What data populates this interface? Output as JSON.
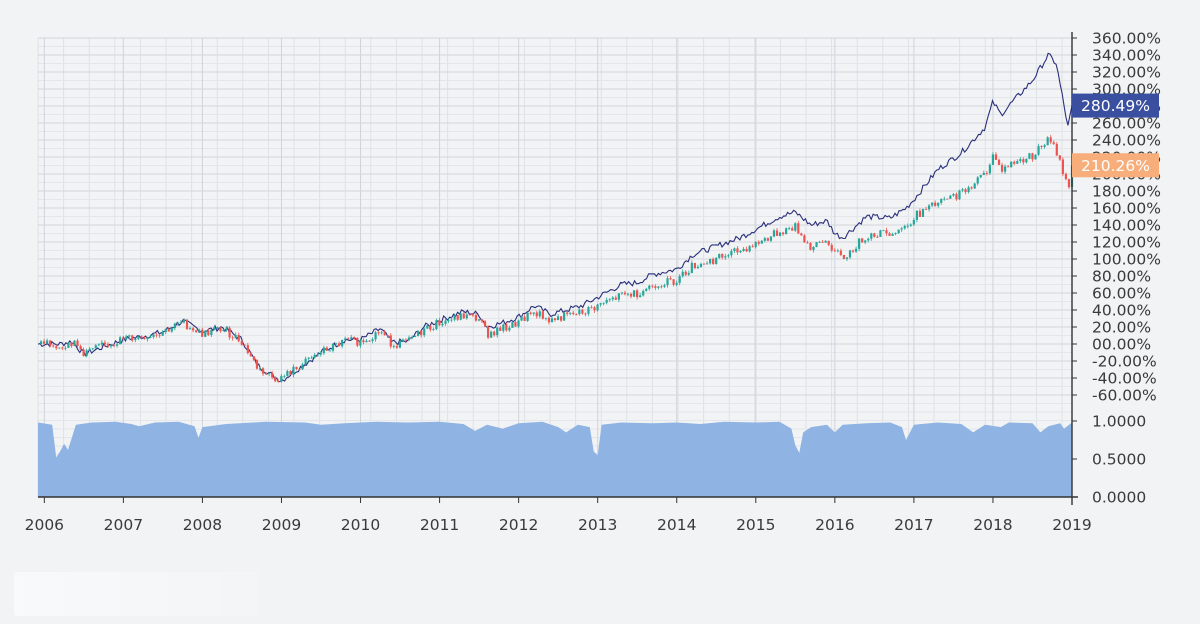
{
  "chart_data": [
    {
      "type": "line",
      "title": "",
      "xlabel": "",
      "ylabel": "",
      "x_ticks": [
        "2006",
        "2007",
        "2008",
        "2009",
        "2010",
        "2011",
        "2012",
        "2013",
        "2014",
        "2015",
        "2016",
        "2017",
        "2018",
        "2019"
      ],
      "x_range": [
        2005.92,
        2019.0
      ],
      "y_ticks": [
        "360.00%",
        "340.00%",
        "320.00%",
        "300.00%",
        "280.00%",
        "260.00%",
        "240.00%",
        "220.00%",
        "200.00%",
        "180.00%",
        "160.00%",
        "140.00%",
        "120.00%",
        "100.00%",
        "80.00%",
        "60.00%",
        "40.00%",
        "20.00%",
        "00.00%",
        "-20.00%",
        "-40.00%",
        "-60.00%"
      ],
      "ylim": [
        -70,
        365
      ],
      "grid": true,
      "series": [
        {
          "style": "line",
          "color": "#2a2f7a",
          "last_value_label": "280.49%",
          "label_color": "#3a4fa0",
          "points": [
            [
              2005.92,
              0
            ],
            [
              2006.2,
              0
            ],
            [
              2006.35,
              3
            ],
            [
              2006.5,
              -12
            ],
            [
              2006.7,
              -5
            ],
            [
              2007.0,
              5
            ],
            [
              2007.3,
              10
            ],
            [
              2007.5,
              14
            ],
            [
              2007.75,
              27
            ],
            [
              2008.0,
              15
            ],
            [
              2008.25,
              20
            ],
            [
              2008.5,
              5
            ],
            [
              2008.7,
              -25
            ],
            [
              2008.9,
              -38
            ],
            [
              2009.0,
              -43
            ],
            [
              2009.2,
              -30
            ],
            [
              2009.5,
              -10
            ],
            [
              2009.8,
              5
            ],
            [
              2010.0,
              5
            ],
            [
              2010.25,
              18
            ],
            [
              2010.4,
              2
            ],
            [
              2010.6,
              3
            ],
            [
              2010.8,
              20
            ],
            [
              2011.0,
              28
            ],
            [
              2011.3,
              38
            ],
            [
              2011.5,
              35
            ],
            [
              2011.6,
              20
            ],
            [
              2011.8,
              25
            ],
            [
              2012.0,
              32
            ],
            [
              2012.2,
              45
            ],
            [
              2012.4,
              35
            ],
            [
              2012.6,
              40
            ],
            [
              2012.8,
              45
            ],
            [
              2013.0,
              55
            ],
            [
              2013.3,
              70
            ],
            [
              2013.5,
              72
            ],
            [
              2013.7,
              82
            ],
            [
              2014.0,
              88
            ],
            [
              2014.2,
              105
            ],
            [
              2014.5,
              115
            ],
            [
              2014.8,
              125
            ],
            [
              2015.0,
              135
            ],
            [
              2015.3,
              150
            ],
            [
              2015.5,
              155
            ],
            [
              2015.7,
              140
            ],
            [
              2015.9,
              145
            ],
            [
              2016.0,
              130
            ],
            [
              2016.1,
              125
            ],
            [
              2016.4,
              150
            ],
            [
              2016.7,
              148
            ],
            [
              2016.9,
              160
            ],
            [
              2017.0,
              170
            ],
            [
              2017.3,
              205
            ],
            [
              2017.6,
              225
            ],
            [
              2017.9,
              255
            ],
            [
              2018.0,
              285
            ],
            [
              2018.1,
              270
            ],
            [
              2018.3,
              290
            ],
            [
              2018.5,
              310
            ],
            [
              2018.7,
              340
            ],
            [
              2018.8,
              330
            ],
            [
              2018.88,
              290
            ],
            [
              2018.95,
              255
            ],
            [
              2019.0,
              280.49
            ]
          ]
        },
        {
          "style": "candlestick",
          "up_color": "#26a69a",
          "down_color": "#ef5350",
          "last_value_label": "210.26%",
          "label_color": "#f7ae7a",
          "points": [
            [
              2005.92,
              0
            ],
            [
              2006.2,
              -2
            ],
            [
              2006.35,
              2
            ],
            [
              2006.5,
              -10
            ],
            [
              2006.7,
              -4
            ],
            [
              2007.0,
              6
            ],
            [
              2007.3,
              10
            ],
            [
              2007.5,
              15
            ],
            [
              2007.75,
              25
            ],
            [
              2008.0,
              12
            ],
            [
              2008.25,
              18
            ],
            [
              2008.5,
              3
            ],
            [
              2008.7,
              -28
            ],
            [
              2008.9,
              -40
            ],
            [
              2009.0,
              -40
            ],
            [
              2009.2,
              -28
            ],
            [
              2009.5,
              -10
            ],
            [
              2009.8,
              3
            ],
            [
              2010.0,
              3
            ],
            [
              2010.25,
              15
            ],
            [
              2010.4,
              0
            ],
            [
              2010.6,
              2
            ],
            [
              2010.8,
              17
            ],
            [
              2011.0,
              25
            ],
            [
              2011.3,
              33
            ],
            [
              2011.5,
              30
            ],
            [
              2011.6,
              12
            ],
            [
              2011.8,
              18
            ],
            [
              2012.0,
              25
            ],
            [
              2012.2,
              38
            ],
            [
              2012.4,
              28
            ],
            [
              2012.6,
              33
            ],
            [
              2012.8,
              37
            ],
            [
              2013.0,
              45
            ],
            [
              2013.3,
              57
            ],
            [
              2013.5,
              60
            ],
            [
              2013.7,
              70
            ],
            [
              2014.0,
              75
            ],
            [
              2014.2,
              92
            ],
            [
              2014.5,
              100
            ],
            [
              2014.8,
              110
            ],
            [
              2015.0,
              118
            ],
            [
              2015.3,
              132
            ],
            [
              2015.5,
              138
            ],
            [
              2015.7,
              112
            ],
            [
              2015.9,
              122
            ],
            [
              2016.0,
              108
            ],
            [
              2016.1,
              100
            ],
            [
              2016.4,
              128
            ],
            [
              2016.7,
              132
            ],
            [
              2016.9,
              138
            ],
            [
              2017.0,
              150
            ],
            [
              2017.3,
              165
            ],
            [
              2017.6,
              178
            ],
            [
              2017.9,
              200
            ],
            [
              2018.0,
              222
            ],
            [
              2018.1,
              205
            ],
            [
              2018.3,
              215
            ],
            [
              2018.5,
              222
            ],
            [
              2018.7,
              240
            ],
            [
              2018.8,
              228
            ],
            [
              2018.88,
              205
            ],
            [
              2018.95,
              182
            ],
            [
              2019.0,
              210.26
            ]
          ]
        }
      ]
    },
    {
      "type": "area",
      "title": "",
      "xlabel": "",
      "ylabel": "",
      "y_ticks": [
        "1.0000",
        "0.5000",
        "0.0000"
      ],
      "ylim": [
        0,
        1.05
      ],
      "color": "#8fb3e3",
      "points": [
        [
          2005.92,
          0.98
        ],
        [
          2006.1,
          0.95
        ],
        [
          2006.15,
          0.52
        ],
        [
          2006.2,
          0.6
        ],
        [
          2006.25,
          0.7
        ],
        [
          2006.3,
          0.62
        ],
        [
          2006.4,
          0.95
        ],
        [
          2006.6,
          0.98
        ],
        [
          2006.9,
          0.99
        ],
        [
          2007.1,
          0.96
        ],
        [
          2007.2,
          0.93
        ],
        [
          2007.4,
          0.98
        ],
        [
          2007.7,
          0.99
        ],
        [
          2007.9,
          0.93
        ],
        [
          2007.95,
          0.78
        ],
        [
          2008.0,
          0.92
        ],
        [
          2008.3,
          0.96
        ],
        [
          2008.8,
          0.99
        ],
        [
          2009.3,
          0.98
        ],
        [
          2009.5,
          0.95
        ],
        [
          2009.8,
          0.97
        ],
        [
          2010.2,
          0.99
        ],
        [
          2010.6,
          0.98
        ],
        [
          2011.0,
          0.99
        ],
        [
          2011.3,
          0.96
        ],
        [
          2011.45,
          0.87
        ],
        [
          2011.6,
          0.95
        ],
        [
          2011.8,
          0.9
        ],
        [
          2012.0,
          0.97
        ],
        [
          2012.3,
          0.99
        ],
        [
          2012.5,
          0.92
        ],
        [
          2012.6,
          0.85
        ],
        [
          2012.75,
          0.95
        ],
        [
          2012.9,
          0.92
        ],
        [
          2012.95,
          0.6
        ],
        [
          2013.0,
          0.55
        ],
        [
          2013.05,
          0.95
        ],
        [
          2013.3,
          0.98
        ],
        [
          2013.7,
          0.97
        ],
        [
          2014.0,
          0.98
        ],
        [
          2014.3,
          0.96
        ],
        [
          2014.6,
          0.99
        ],
        [
          2015.0,
          0.98
        ],
        [
          2015.3,
          0.99
        ],
        [
          2015.45,
          0.9
        ],
        [
          2015.5,
          0.68
        ],
        [
          2015.55,
          0.58
        ],
        [
          2015.6,
          0.85
        ],
        [
          2015.7,
          0.92
        ],
        [
          2015.9,
          0.95
        ],
        [
          2016.0,
          0.85
        ],
        [
          2016.1,
          0.95
        ],
        [
          2016.4,
          0.97
        ],
        [
          2016.7,
          0.98
        ],
        [
          2016.85,
          0.92
        ],
        [
          2016.9,
          0.75
        ],
        [
          2017.0,
          0.95
        ],
        [
          2017.3,
          0.98
        ],
        [
          2017.6,
          0.96
        ],
        [
          2017.75,
          0.85
        ],
        [
          2017.9,
          0.95
        ],
        [
          2018.1,
          0.92
        ],
        [
          2018.2,
          0.98
        ],
        [
          2018.5,
          0.97
        ],
        [
          2018.6,
          0.85
        ],
        [
          2018.7,
          0.93
        ],
        [
          2018.85,
          0.97
        ],
        [
          2018.9,
          0.9
        ],
        [
          2019.0,
          0.98
        ]
      ]
    }
  ]
}
